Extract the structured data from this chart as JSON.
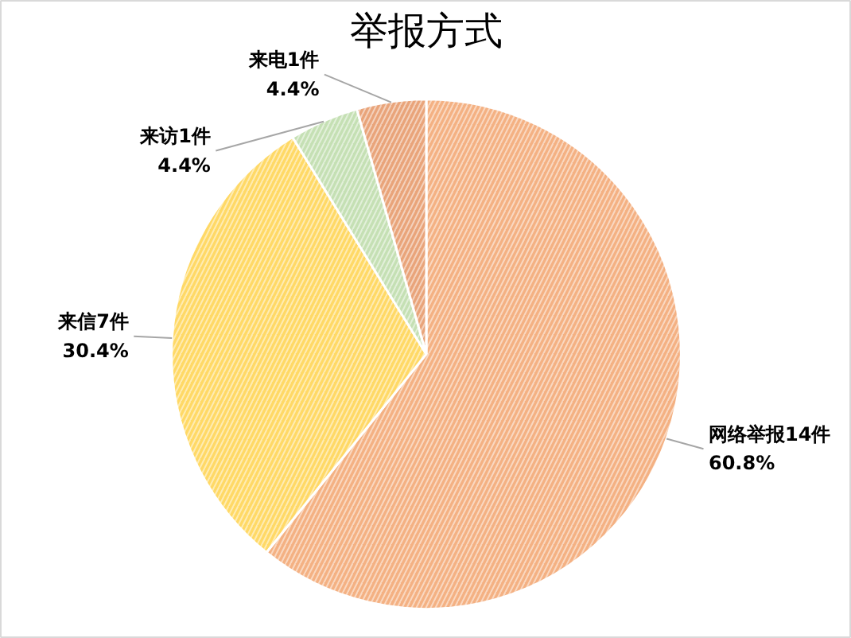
{
  "chart_data": {
    "type": "pie",
    "title": "举报方式",
    "categories": [
      "网络举报14件",
      "来信7件",
      "来访1件",
      "来电1件"
    ],
    "values": [
      60.8,
      30.4,
      4.4,
      4.4
    ],
    "value_labels": [
      "60.8%",
      "30.4%",
      "4.4%",
      "4.4%"
    ],
    "colors": [
      "#f4b183",
      "#ffd966",
      "#c5e0b4",
      "#e9a47a"
    ]
  }
}
